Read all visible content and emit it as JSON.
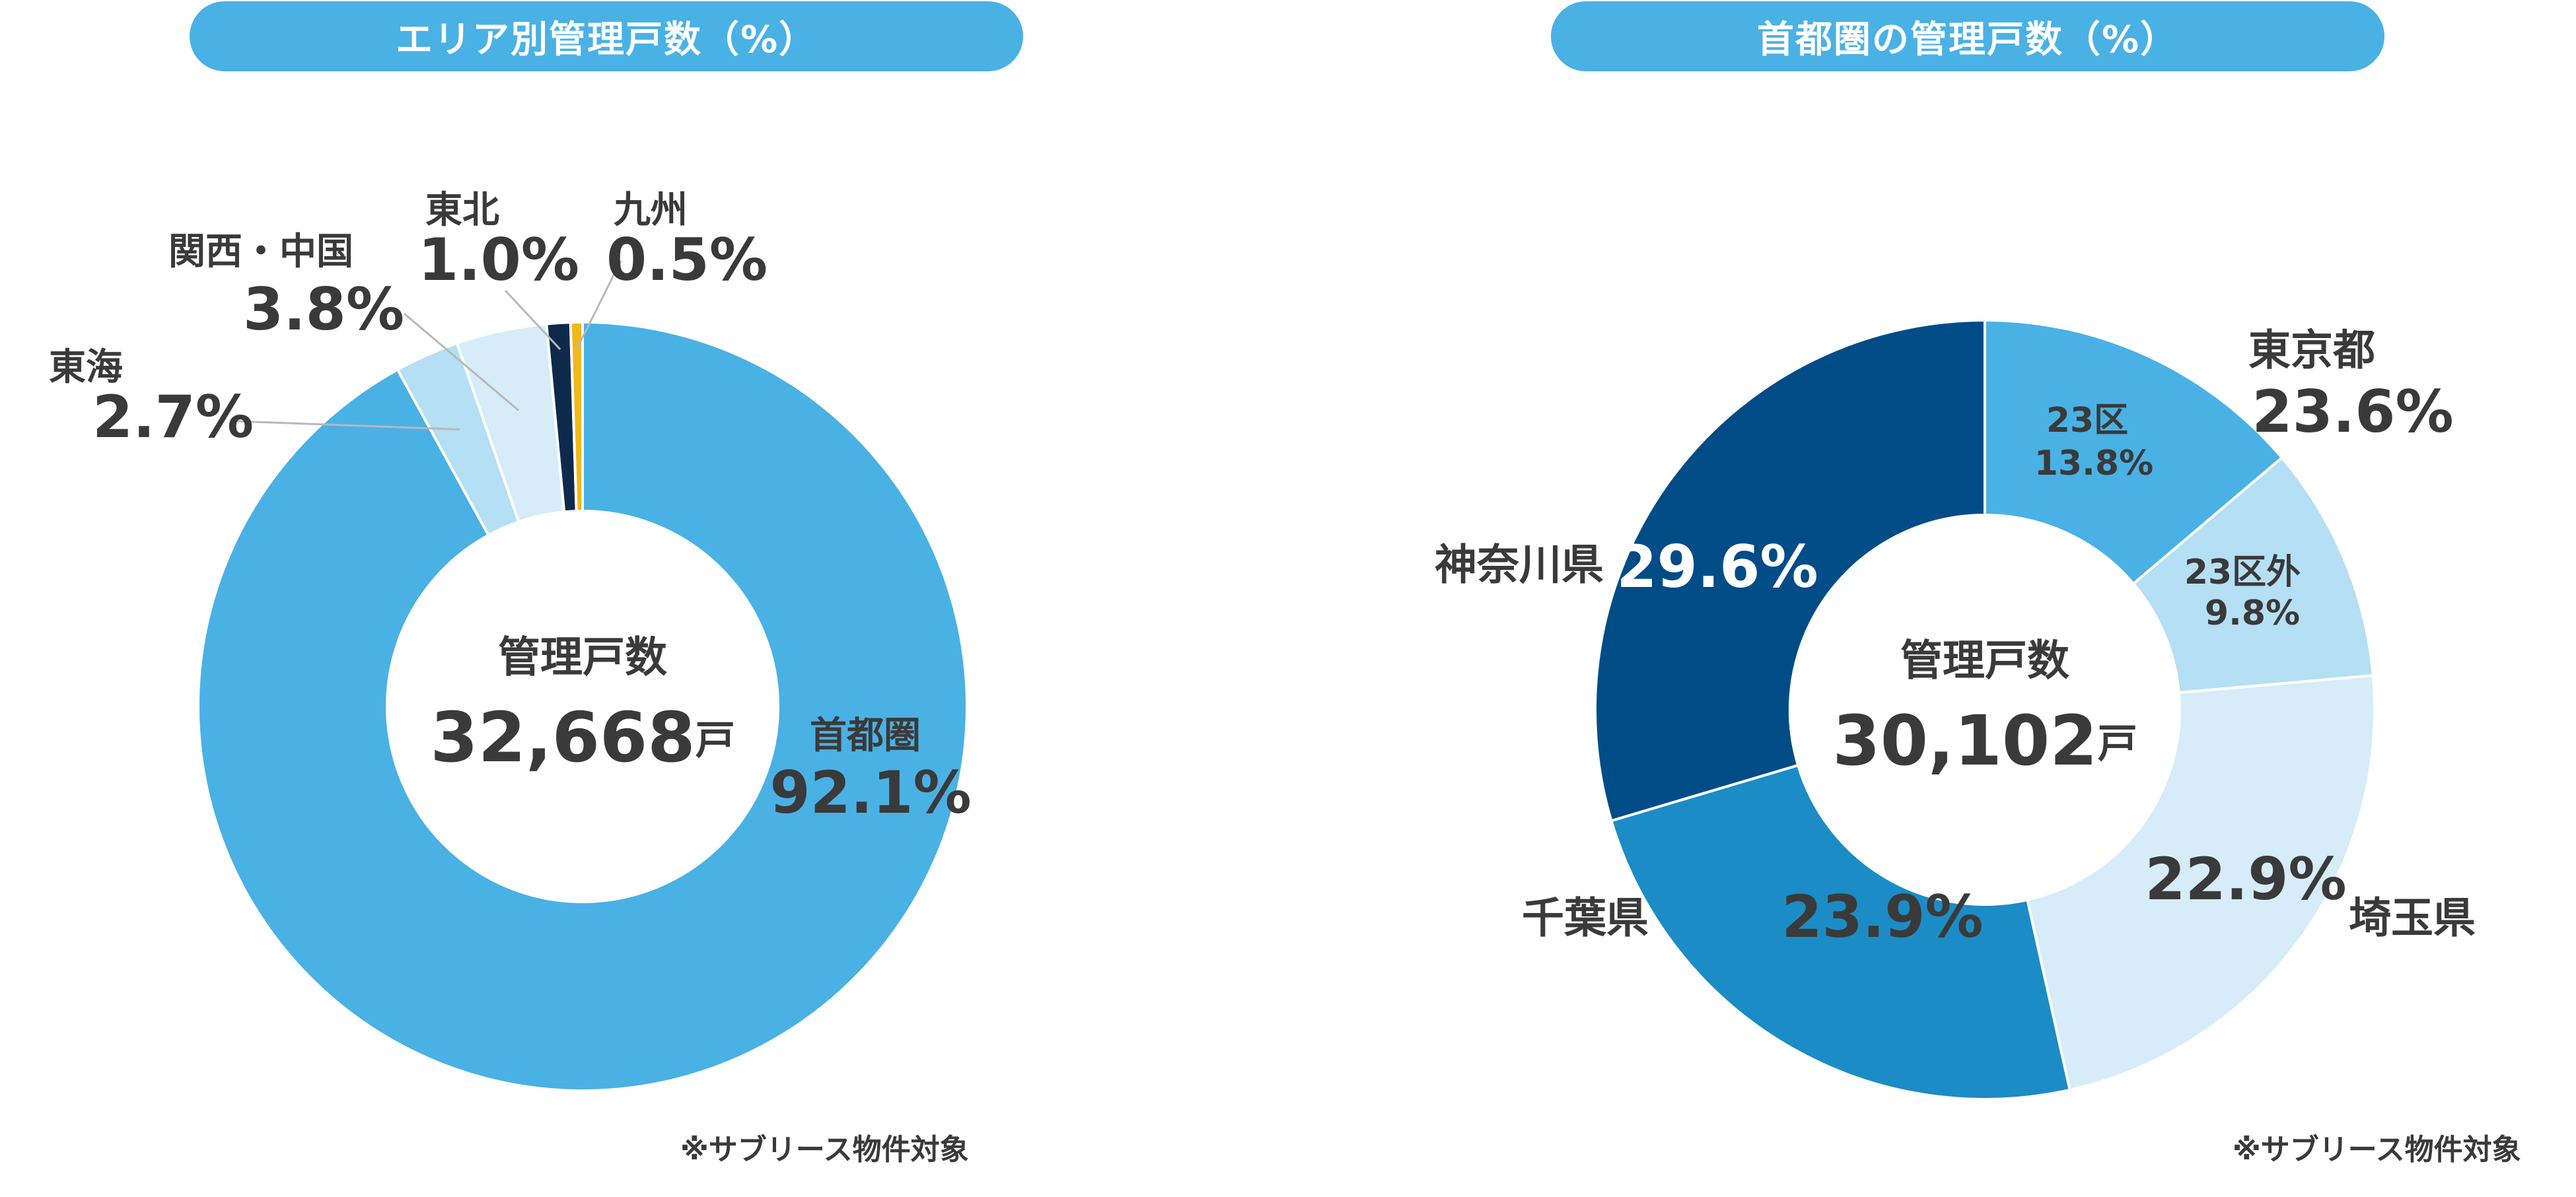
{
  "left_title": "エリア別管理戸数（%）",
  "right_title": "首都圏の管理戸数（%）",
  "left_note": "※サブリース物件対象",
  "right_note": "※サブリース物件対象",
  "chart_data": [
    {
      "type": "pie",
      "title": "エリア別管理戸数（%）",
      "center_label": "管理戸数",
      "center_value": "32,668",
      "center_unit": "戸",
      "slices": [
        {
          "name": "首都圏",
          "value": 92.1,
          "label": "92.1%",
          "color": "#4ab1e5"
        },
        {
          "name": "東海",
          "value": 2.7,
          "label": "2.7%",
          "color": "#b5dff4"
        },
        {
          "name": "関西・中国",
          "value": 3.8,
          "label": "3.8%",
          "color": "#d6ecf8"
        },
        {
          "name": "東北",
          "value": 1.0,
          "label": "1.0%",
          "color": "#0d2a4d"
        },
        {
          "name": "九州",
          "value": 0.5,
          "label": "0.5%",
          "color": "#f2b81b"
        }
      ]
    },
    {
      "type": "pie",
      "title": "首都圏の管理戸数（%）",
      "center_label": "管理戸数",
      "center_value": "30,102",
      "center_unit": "戸",
      "slices": [
        {
          "name": "23区",
          "value": 13.8,
          "label": "13.8%",
          "color": "#4ab1e5"
        },
        {
          "name": "23区外",
          "value": 9.8,
          "label": "9.8%",
          "color": "#b5dff4"
        },
        {
          "name": "埼玉県",
          "value": 22.9,
          "label": "22.9%",
          "color": "#d6ecf8"
        },
        {
          "name": "千葉県",
          "value": 23.9,
          "label": "23.9%",
          "color": "#1c8cc6"
        },
        {
          "name": "神奈川県",
          "value": 29.6,
          "label": "29.6%",
          "color": "#004c87"
        }
      ],
      "group_labels": [
        {
          "name": "東京都",
          "label": "23.6%"
        }
      ]
    }
  ]
}
